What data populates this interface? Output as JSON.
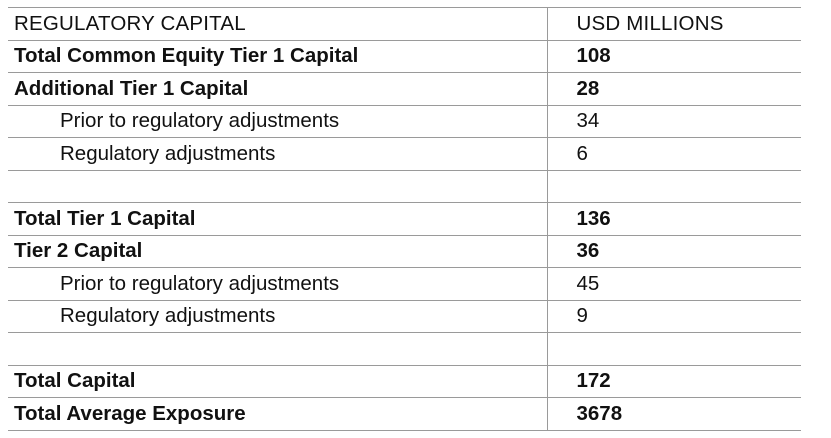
{
  "table": {
    "header": {
      "label": "REGULATORY CAPITAL",
      "value": "USD MILLIONS"
    },
    "rows": [
      {
        "label": "Total Common Equity Tier 1 Capital",
        "value": "108"
      },
      {
        "label": "Additional Tier 1 Capital",
        "value": "28"
      },
      {
        "label": "Prior to regulatory adjustments",
        "value": "34"
      },
      {
        "label": "Regulatory adjustments",
        "value": "6"
      },
      {
        "label": "",
        "value": ""
      },
      {
        "label": "Total Tier 1 Capital",
        "value": "136"
      },
      {
        "label": "Tier 2 Capital",
        "value": "36"
      },
      {
        "label": "Prior to regulatory adjustments",
        "value": "45"
      },
      {
        "label": "Regulatory adjustments",
        "value": "9"
      },
      {
        "label": "",
        "value": ""
      },
      {
        "label": "Total Capital",
        "value": "172"
      },
      {
        "label": "Total Average Exposure",
        "value": "3678"
      }
    ]
  }
}
